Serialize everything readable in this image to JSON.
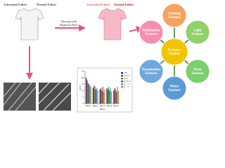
{
  "step1": {
    "untreated_label": "Untreated Fabric",
    "treated_label": "Treated Fabric"
  },
  "process": {
    "label_lines": [
      "Dyeing with",
      "Disperse Dyes"
    ]
  },
  "step2": {
    "untreated_label": "Untreated Fabric",
    "treated_label": "Treated Fabric"
  },
  "hub": {
    "center_lines": [
      "Fastness",
      "Studies"
    ],
    "nodes": [
      {
        "lines": [
          "Rubbing",
          "Fastness"
        ],
        "color": "#f4a460"
      },
      {
        "lines": [
          "Light",
          "Fastness"
        ],
        "color": "#8fd16a"
      },
      {
        "lines": [
          "Wash",
          "Fastness"
        ],
        "color": "#7bcf6e"
      },
      {
        "lines": [
          "Water",
          "Fastness"
        ],
        "color": "#5b9bd5"
      },
      {
        "lines": [
          "Perspiration",
          "Fastness"
        ],
        "color": "#6fa8dc"
      },
      {
        "lines": [
          "Sublimation",
          "Fastness"
        ],
        "color": "#f48fb1"
      }
    ]
  },
  "chart": {
    "type": "bar",
    "y_label": "K/S",
    "x_label": "Dyes",
    "categories": [
      "Dye-1",
      "Dye-2",
      "Dye-3",
      "Dye-4",
      "Dye-5"
    ],
    "ylim": [
      0,
      25
    ],
    "yticks": [
      0,
      5,
      10,
      15,
      20,
      25
    ],
    "series": [
      {
        "name": "CB",
        "color": "#1f3c88",
        "values": [
          20,
          12,
          11,
          12,
          10
        ]
      },
      {
        "name": "CB-CF",
        "color": "#d62728",
        "values": [
          18,
          14,
          12,
          11,
          12
        ]
      },
      {
        "name": "PCB",
        "color": "#2ca02c",
        "values": [
          16,
          13,
          10,
          13,
          11
        ]
      },
      {
        "name": "PCB-CF",
        "color": "#7b3fa0",
        "values": [
          15,
          11,
          13,
          10,
          9
        ]
      },
      {
        "name": "PC-CB",
        "color": "#17becf",
        "values": [
          14,
          12,
          9,
          12,
          13
        ]
      },
      {
        "name": "PC-CF",
        "color": "#ff7f0e",
        "values": [
          13,
          10,
          11,
          9,
          10
        ]
      }
    ]
  }
}
